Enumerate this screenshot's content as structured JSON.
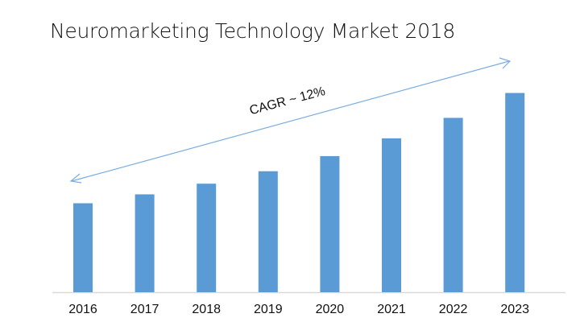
{
  "chart_data": {
    "type": "bar",
    "title": "Neuromarketing Technology Market 2018",
    "categories": [
      "2016",
      "2017",
      "2018",
      "2019",
      "2020",
      "2021",
      "2022",
      "2023"
    ],
    "values": [
      100,
      110,
      122,
      136,
      153,
      173,
      196,
      224
    ],
    "xlabel": "",
    "ylabel": "",
    "y_axis_shown": false,
    "grid": false,
    "legend": "none",
    "bar_color": "#5b9bd5",
    "annotation": {
      "text": "CAGR ~ 12%",
      "arrow": "double-headed",
      "color": "#7aaee0"
    }
  }
}
